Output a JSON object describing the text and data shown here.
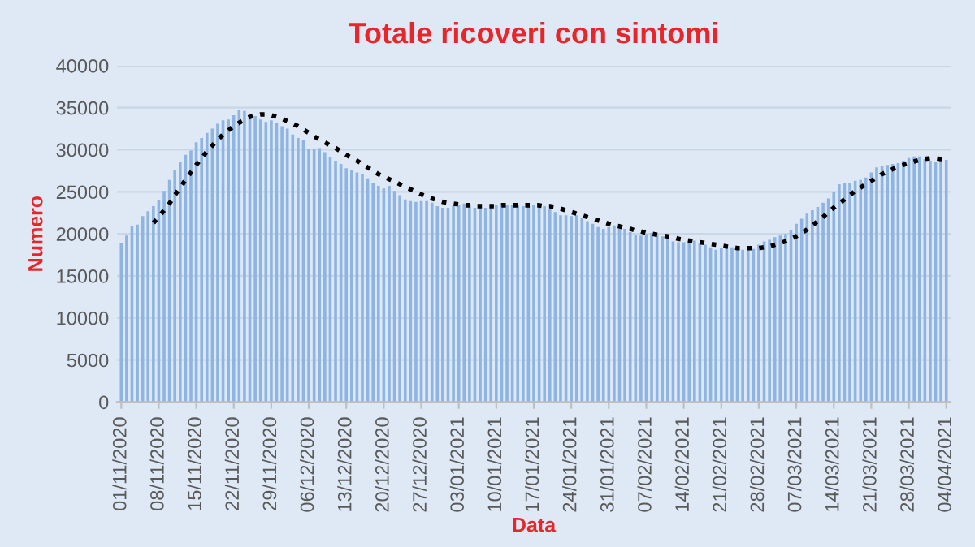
{
  "chart_data": {
    "type": "bar",
    "title": "Totale ricoveri con sintomi",
    "xlabel": "Data",
    "ylabel": "Numero",
    "categories": [
      "01/11/2020",
      null,
      null,
      null,
      null,
      null,
      null,
      "08/11/2020",
      null,
      null,
      null,
      null,
      null,
      null,
      "15/11/2020",
      null,
      null,
      null,
      null,
      null,
      null,
      "22/11/2020",
      null,
      null,
      null,
      null,
      null,
      null,
      "29/11/2020",
      null,
      null,
      null,
      null,
      null,
      null,
      "06/12/2020",
      null,
      null,
      null,
      null,
      null,
      null,
      "13/12/2020",
      null,
      null,
      null,
      null,
      null,
      null,
      "20/12/2020",
      null,
      null,
      null,
      null,
      null,
      null,
      "27/12/2020",
      null,
      null,
      null,
      null,
      null,
      null,
      "03/01/2021",
      null,
      null,
      null,
      null,
      null,
      null,
      "10/01/2021",
      null,
      null,
      null,
      null,
      null,
      null,
      "17/01/2021",
      null,
      null,
      null,
      null,
      null,
      null,
      "24/01/2021",
      null,
      null,
      null,
      null,
      null,
      null,
      "31/01/2021",
      null,
      null,
      null,
      null,
      null,
      null,
      "07/02/2021",
      null,
      null,
      null,
      null,
      null,
      null,
      "14/02/2021",
      null,
      null,
      null,
      null,
      null,
      null,
      "21/02/2021",
      null,
      null,
      null,
      null,
      null,
      null,
      "28/02/2021",
      null,
      null,
      null,
      null,
      null,
      null,
      "07/03/2021",
      null,
      null,
      null,
      null,
      null,
      null,
      "14/03/2021",
      null,
      null,
      null,
      null,
      null,
      null,
      "21/03/2021",
      null,
      null,
      null,
      null,
      null,
      null,
      "28/03/2021",
      null,
      null,
      null,
      null,
      null,
      null,
      "04/04/2021"
    ],
    "series": [
      {
        "color": "#8db4e2",
        "values": [
          18900,
          19800,
          20900,
          21100,
          22100,
          22700,
          23300,
          24000,
          25100,
          26400,
          27600,
          28600,
          29400,
          29900,
          30900,
          31400,
          32000,
          32500,
          33100,
          33500,
          33600,
          34100,
          34700,
          34600,
          34300,
          34000,
          33600,
          33300,
          33500,
          33200,
          32800,
          32500,
          31800,
          31400,
          31200,
          30100,
          30100,
          30200,
          29700,
          29100,
          28700,
          28300,
          27800,
          27600,
          27300,
          27100,
          26600,
          26000,
          25700,
          25400,
          25700,
          25100,
          24600,
          24100,
          23900,
          23800,
          23900,
          23900,
          23700,
          23300,
          23100,
          23100,
          23300,
          23400,
          23600,
          23400,
          23100,
          23400,
          23100,
          23100,
          23400,
          23600,
          23400,
          23400,
          23400,
          23300,
          23300,
          23400,
          23600,
          23300,
          23000,
          22600,
          22200,
          22200,
          22100,
          22200,
          21900,
          21500,
          21200,
          20800,
          20600,
          20800,
          21000,
          20800,
          20600,
          20200,
          19900,
          19800,
          20000,
          20100,
          20000,
          19700,
          19400,
          19100,
          19000,
          19000,
          19300,
          19200,
          18900,
          18700,
          18400,
          18100,
          18300,
          18600,
          18400,
          18200,
          18100,
          18100,
          18200,
          18700,
          19100,
          19300,
          19600,
          19800,
          20000,
          20500,
          21200,
          21800,
          22400,
          22800,
          23200,
          23700,
          24200,
          25000,
          25900,
          26100,
          26100,
          26300,
          26400,
          26700,
          27300,
          27900,
          28100,
          28200,
          28300,
          28400,
          28700,
          29000,
          29200,
          29200,
          28900,
          28700,
          28600,
          28600,
          28800
        ]
      },
      {
        "type": "line",
        "color": "#000000",
        "line_style": "dotted",
        "marker": "none",
        "values": [
          null,
          null,
          null,
          null,
          null,
          null,
          21300,
          22000,
          22800,
          23600,
          24600,
          25500,
          26400,
          27300,
          28200,
          29000,
          29800,
          30500,
          31200,
          31800,
          32300,
          32800,
          33200,
          33600,
          33900,
          34100,
          34200,
          34200,
          34100,
          33900,
          33700,
          33400,
          33100,
          32800,
          32400,
          32000,
          31600,
          31200,
          30900,
          30500,
          30200,
          29800,
          29400,
          29000,
          28700,
          28300,
          27900,
          27500,
          27100,
          26800,
          26500,
          26200,
          25900,
          25600,
          25300,
          25000,
          24700,
          24400,
          24200,
          24000,
          23800,
          23700,
          23600,
          23500,
          23400,
          23400,
          23300,
          23300,
          23300,
          23300,
          23300,
          23400,
          23400,
          23400,
          23400,
          23400,
          23400,
          23400,
          23400,
          23300,
          23300,
          23200,
          23000,
          22800,
          22600,
          22400,
          22200,
          22000,
          21800,
          21600,
          21400,
          21200,
          21000,
          20900,
          20700,
          20600,
          20400,
          20300,
          20100,
          20000,
          19900,
          19800,
          19700,
          19600,
          19400,
          19300,
          19200,
          19100,
          19000,
          18900,
          18800,
          18700,
          18600,
          18500,
          18400,
          18300,
          18300,
          18300,
          18300,
          18300,
          18400,
          18500,
          18700,
          18900,
          19100,
          19400,
          19700,
          20100,
          20500,
          21000,
          21500,
          22000,
          22600,
          23100,
          23600,
          24100,
          24600,
          25100,
          25500,
          25900,
          26300,
          26700,
          27100,
          27400,
          27700,
          28000,
          28200,
          28400,
          28600,
          28800,
          28900,
          29000,
          29000,
          28900,
          28900
        ]
      }
    ],
    "ylim": [
      0,
      40000
    ],
    "yticks": [
      0,
      5000,
      10000,
      15000,
      20000,
      25000,
      30000,
      35000,
      40000
    ],
    "grid": "y"
  }
}
